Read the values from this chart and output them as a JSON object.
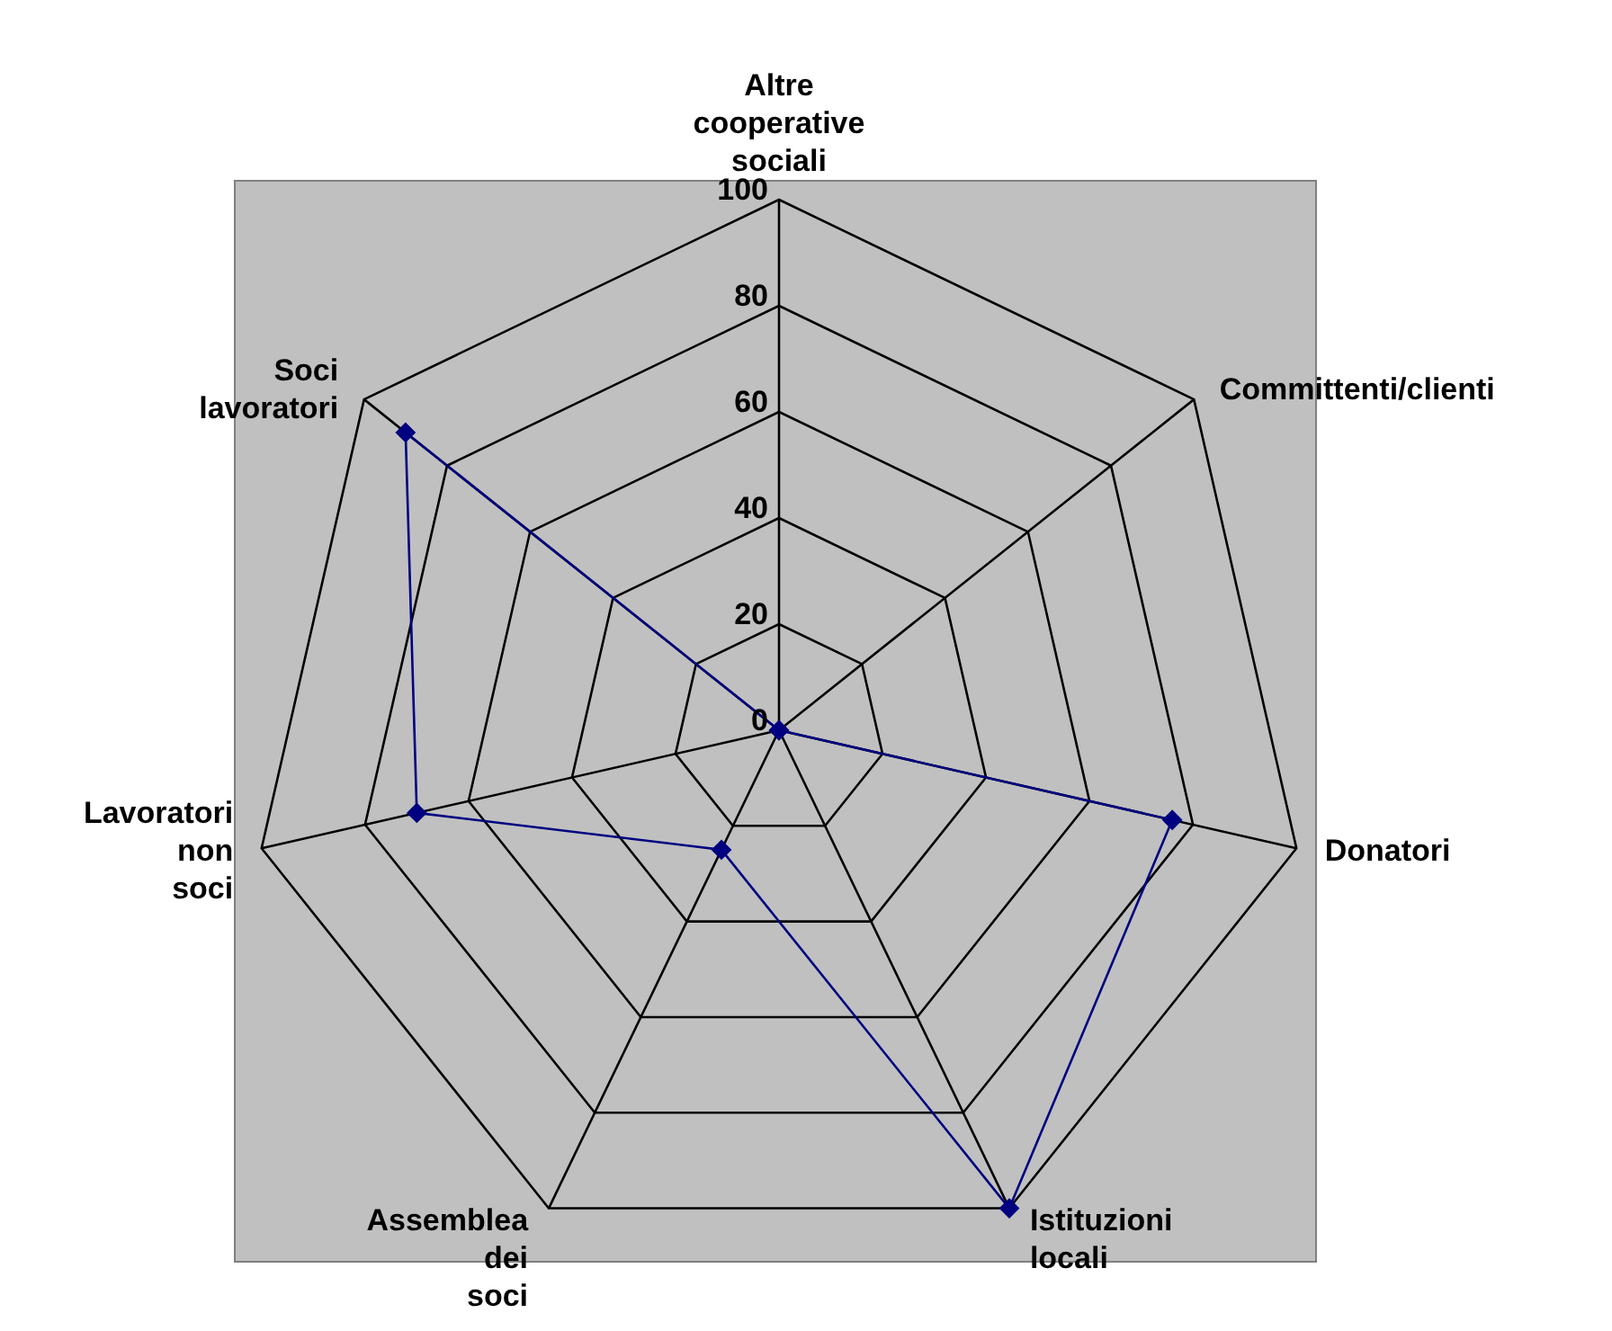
{
  "chart_data": {
    "type": "radar",
    "categories": [
      "Altre cooperative sociali",
      "Committenti/clienti",
      "Donatori",
      "Istituzioni locali",
      "Assemblea dei soci",
      "Lavoratori non soci",
      "Soci lavoratori"
    ],
    "series": [
      {
        "color": "#000080",
        "values": [
          0,
          0,
          76,
          100,
          25,
          70,
          90
        ]
      }
    ],
    "ylim": [
      0,
      100
    ],
    "yticks": [
      0,
      20,
      40,
      60,
      80,
      100
    ],
    "grid": true,
    "marker": "diamond"
  }
}
